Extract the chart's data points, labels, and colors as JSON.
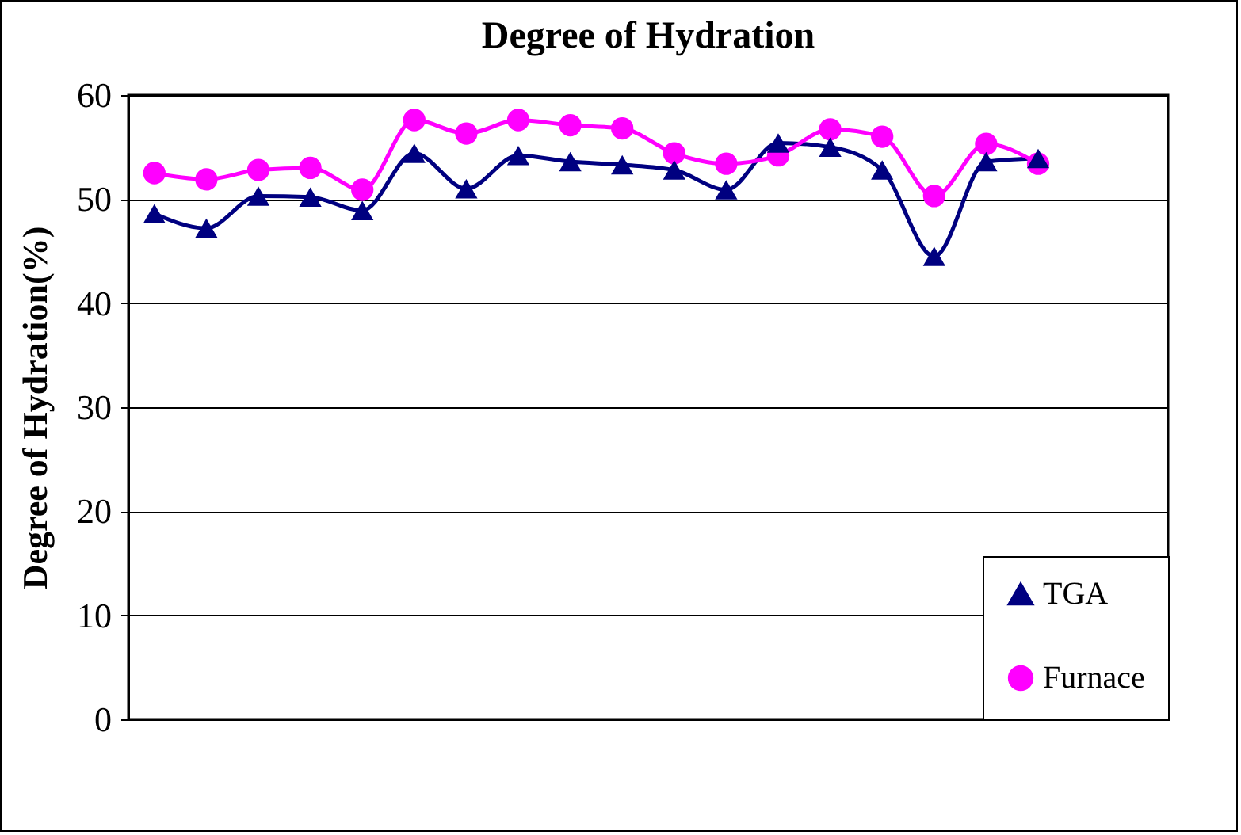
{
  "chart_data": {
    "type": "line",
    "title": "Degree of Hydration",
    "ylabel": "Degree of Hydration(%)",
    "categories": [
      null,
      null,
      null,
      null,
      null,
      null,
      null,
      null,
      null,
      null,
      null,
      null,
      null,
      null,
      null,
      null,
      null,
      null,
      null,
      null
    ],
    "series": [
      {
        "name": "TGA",
        "color": "#000080",
        "marker": "triangle",
        "values": [
          48.6,
          47.2,
          50.3,
          50.2,
          48.9,
          54.4,
          51.0,
          54.2,
          53.6,
          53.3,
          52.8,
          50.9,
          55.4,
          55.0,
          52.8,
          44.5,
          53.6,
          53.9,
          null,
          null
        ]
      },
      {
        "name": "Furnace",
        "color": "#ff00ff",
        "marker": "circle",
        "values": [
          52.5,
          51.9,
          52.8,
          53.0,
          50.9,
          57.6,
          56.3,
          57.6,
          57.1,
          56.8,
          54.4,
          53.4,
          54.2,
          56.7,
          56.0,
          50.3,
          55.3,
          53.4,
          null,
          null
        ]
      }
    ],
    "ylim": [
      0,
      60
    ],
    "yticks": [
      0,
      10,
      20,
      30,
      40,
      50,
      60
    ],
    "grid": "y",
    "legend": "bottom right"
  }
}
